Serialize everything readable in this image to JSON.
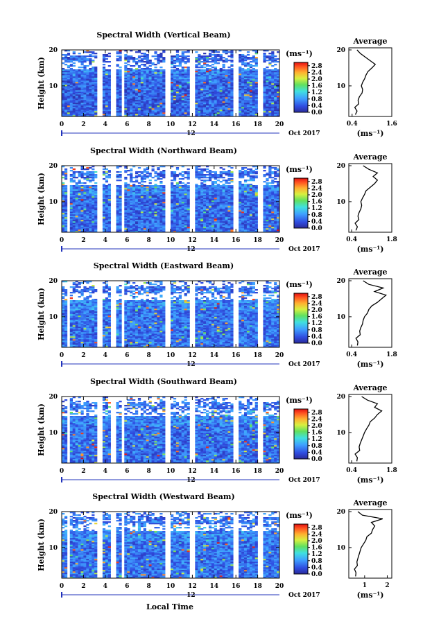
{
  "figure": {
    "shared_xlabel": "Local Time",
    "date_label": "Oct 2017",
    "day_marker": "12"
  },
  "chart_data": [
    {
      "type": "heatmap",
      "title": "Spectral Width (Vertical Beam)",
      "xlabel": "",
      "ylabel": "Height (km)",
      "xlim": [
        0,
        20
      ],
      "ylim": [
        1.5,
        20
      ],
      "xticks": [
        "0",
        "2",
        "4",
        "6",
        "8",
        "10",
        "12",
        "14",
        "16",
        "18",
        "20"
      ],
      "yticks": [
        "10",
        "20"
      ],
      "colorbar": {
        "unit": "(ms⁻¹)",
        "ticks": [
          "0.0",
          "0.4",
          "0.8",
          "1.2",
          "1.6",
          "2.0",
          "2.4",
          "2.8"
        ],
        "range": [
          0,
          3.0
        ]
      },
      "data_gaps_hours": [
        [
          3.3,
          3.8
        ],
        [
          4.5,
          4.9
        ],
        [
          5.6,
          5.8
        ],
        [
          9.6,
          9.9
        ],
        [
          11.8,
          12.2
        ],
        [
          15.8,
          16.3
        ],
        [
          18.0,
          18.4
        ]
      ],
      "mean_width": 0.45,
      "profile": {
        "title": "Average",
        "xlabel": "(ms⁻¹)",
        "xticks": [
          "0.4",
          "1.6"
        ],
        "xlim": [
          0.3,
          1.6
        ],
        "yticks": [
          "10",
          "20"
        ],
        "height_km": [
          2,
          3,
          4,
          5,
          6,
          7,
          8,
          9,
          10,
          11,
          12,
          13,
          14,
          15,
          16,
          17,
          18,
          19,
          20
        ],
        "width": [
          0.5,
          0.55,
          0.48,
          0.6,
          0.58,
          0.62,
          0.7,
          0.72,
          0.68,
          0.72,
          0.78,
          0.82,
          0.88,
          1.0,
          1.1,
          0.95,
          0.8,
          0.65,
          0.55
        ]
      }
    },
    {
      "type": "heatmap",
      "title": "Spectral Width (Northward Beam)",
      "xlabel": "",
      "ylabel": "Height (km)",
      "xlim": [
        0,
        20
      ],
      "ylim": [
        1.5,
        20
      ],
      "xticks": [
        "0",
        "2",
        "4",
        "6",
        "8",
        "10",
        "12",
        "14",
        "16",
        "18",
        "20"
      ],
      "yticks": [
        "10",
        "20"
      ],
      "colorbar": {
        "unit": "(ms⁻¹)",
        "ticks": [
          "0.0",
          "0.4",
          "0.8",
          "1.2",
          "1.6",
          "2.0",
          "2.4",
          "2.8"
        ],
        "range": [
          0,
          3.0
        ]
      },
      "data_gaps_hours": [
        [
          0.4,
          0.7
        ],
        [
          3.3,
          3.8
        ],
        [
          4.5,
          4.9
        ],
        [
          5.6,
          5.8
        ],
        [
          9.6,
          9.9
        ],
        [
          11.8,
          12.2
        ],
        [
          15.8,
          16.3
        ],
        [
          18.0,
          18.4
        ]
      ],
      "mean_width": 0.5,
      "profile": {
        "title": "Average",
        "xlabel": "(ms⁻¹)",
        "xticks": [
          "0.4",
          "1.8"
        ],
        "xlim": [
          0.3,
          1.8
        ],
        "yticks": [
          "10",
          "20"
        ],
        "height_km": [
          2,
          3,
          4,
          5,
          6,
          7,
          8,
          9,
          10,
          11,
          12,
          13,
          14,
          15,
          16,
          17,
          18,
          19,
          20
        ],
        "width": [
          0.55,
          0.6,
          0.52,
          0.65,
          0.62,
          0.66,
          0.72,
          0.75,
          0.72,
          0.78,
          0.85,
          0.9,
          1.05,
          1.2,
          1.3,
          1.15,
          1.3,
          1.0,
          0.8
        ]
      }
    },
    {
      "type": "heatmap",
      "title": "Spectral Width (Eastward Beam)",
      "xlabel": "",
      "ylabel": "Height (km)",
      "xlim": [
        0,
        20
      ],
      "ylim": [
        1.5,
        20
      ],
      "xticks": [
        "0",
        "2",
        "4",
        "6",
        "8",
        "10",
        "12",
        "14",
        "16",
        "18",
        "20"
      ],
      "yticks": [
        "10",
        "20"
      ],
      "colorbar": {
        "unit": "(ms⁻¹)",
        "ticks": [
          "0.0",
          "0.4",
          "0.8",
          "1.2",
          "1.6",
          "2.0",
          "2.4",
          "2.8"
        ],
        "range": [
          0,
          3.0
        ]
      },
      "data_gaps_hours": [
        [
          0.4,
          0.7
        ],
        [
          3.3,
          3.8
        ],
        [
          4.5,
          4.9
        ],
        [
          5.6,
          5.8
        ],
        [
          9.6,
          9.9
        ],
        [
          11.8,
          12.2
        ],
        [
          15.8,
          16.3
        ],
        [
          18.0,
          18.4
        ]
      ],
      "mean_width": 0.55,
      "profile": {
        "title": "Average",
        "xlabel": "(ms⁻¹)",
        "xticks": [
          "0.4",
          "1.8"
        ],
        "xlim": [
          0.3,
          1.8
        ],
        "yticks": [
          "10",
          "20"
        ],
        "height_km": [
          2,
          3,
          4,
          5,
          6,
          7,
          8,
          9,
          10,
          11,
          12,
          13,
          14,
          15,
          16,
          17,
          18,
          19,
          20
        ],
        "width": [
          0.6,
          0.62,
          0.55,
          0.7,
          0.68,
          0.72,
          0.78,
          0.8,
          0.85,
          0.95,
          1.0,
          1.1,
          1.3,
          1.45,
          1.6,
          1.2,
          1.5,
          1.0,
          0.8
        ]
      }
    },
    {
      "type": "heatmap",
      "title": "Spectral Width (Southward Beam)",
      "xlabel": "",
      "ylabel": "Height (km)",
      "xlim": [
        0,
        20
      ],
      "ylim": [
        1.5,
        20
      ],
      "xticks": [
        "0",
        "2",
        "4",
        "6",
        "8",
        "10",
        "12",
        "14",
        "16",
        "18",
        "20"
      ],
      "yticks": [
        "10",
        "20"
      ],
      "colorbar": {
        "unit": "(ms⁻¹)",
        "ticks": [
          "0.0",
          "0.4",
          "0.8",
          "1.2",
          "1.6",
          "2.0",
          "2.4",
          "2.8"
        ],
        "range": [
          0,
          3.0
        ]
      },
      "data_gaps_hours": [
        [
          0.4,
          0.7
        ],
        [
          3.3,
          3.8
        ],
        [
          4.5,
          4.9
        ],
        [
          5.6,
          5.8
        ],
        [
          9.6,
          9.9
        ],
        [
          11.8,
          12.2
        ],
        [
          15.8,
          16.3
        ],
        [
          18.0,
          18.4
        ]
      ],
      "mean_width": 0.52,
      "profile": {
        "title": "Average",
        "xlabel": "(ms⁻¹)",
        "xticks": [
          "0.4",
          "1.8"
        ],
        "xlim": [
          0.3,
          1.8
        ],
        "yticks": [
          "10",
          "20"
        ],
        "height_km": [
          2,
          3,
          4,
          5,
          6,
          7,
          8,
          9,
          10,
          11,
          12,
          13,
          14,
          15,
          16,
          17,
          18,
          19,
          20
        ],
        "width": [
          0.58,
          0.6,
          0.52,
          0.68,
          0.66,
          0.7,
          0.75,
          0.8,
          0.85,
          0.92,
          1.0,
          1.05,
          1.2,
          1.3,
          1.45,
          1.2,
          1.3,
          0.95,
          0.75
        ]
      }
    },
    {
      "type": "heatmap",
      "title": "Spectral Width (Westward Beam)",
      "xlabel": "Local Time",
      "ylabel": "Height (km)",
      "xlim": [
        0,
        20
      ],
      "ylim": [
        1.5,
        20
      ],
      "xticks": [
        "0",
        "2",
        "4",
        "6",
        "8",
        "10",
        "12",
        "14",
        "16",
        "18",
        "20"
      ],
      "yticks": [
        "10",
        "20"
      ],
      "colorbar": {
        "unit": "(ms⁻¹)",
        "ticks": [
          "0.0",
          "0.4",
          "0.8",
          "1.2",
          "1.6",
          "2.0",
          "2.4",
          "2.8"
        ],
        "range": [
          0,
          3.0
        ]
      },
      "data_gaps_hours": [
        [
          0.4,
          0.7
        ],
        [
          3.3,
          3.8
        ],
        [
          4.5,
          4.9
        ],
        [
          5.6,
          5.8
        ],
        [
          9.6,
          9.9
        ],
        [
          11.8,
          12.2
        ],
        [
          15.8,
          16.3
        ],
        [
          18.0,
          18.4
        ]
      ],
      "mean_width": 0.55,
      "profile": {
        "title": "Average",
        "xlabel": "(ms⁻¹)",
        "xticks": [
          "1",
          "2"
        ],
        "xlim": [
          0.3,
          2.2
        ],
        "yticks": [
          "10",
          "20"
        ],
        "height_km": [
          2,
          3,
          4,
          5,
          6,
          7,
          8,
          9,
          10,
          11,
          12,
          13,
          14,
          15,
          16,
          17,
          18,
          19,
          20
        ],
        "width": [
          0.6,
          0.62,
          0.55,
          0.68,
          0.66,
          0.7,
          0.75,
          0.8,
          0.85,
          0.95,
          1.05,
          1.1,
          1.3,
          1.35,
          1.45,
          1.3,
          1.8,
          0.9,
          0.7
        ]
      }
    }
  ]
}
